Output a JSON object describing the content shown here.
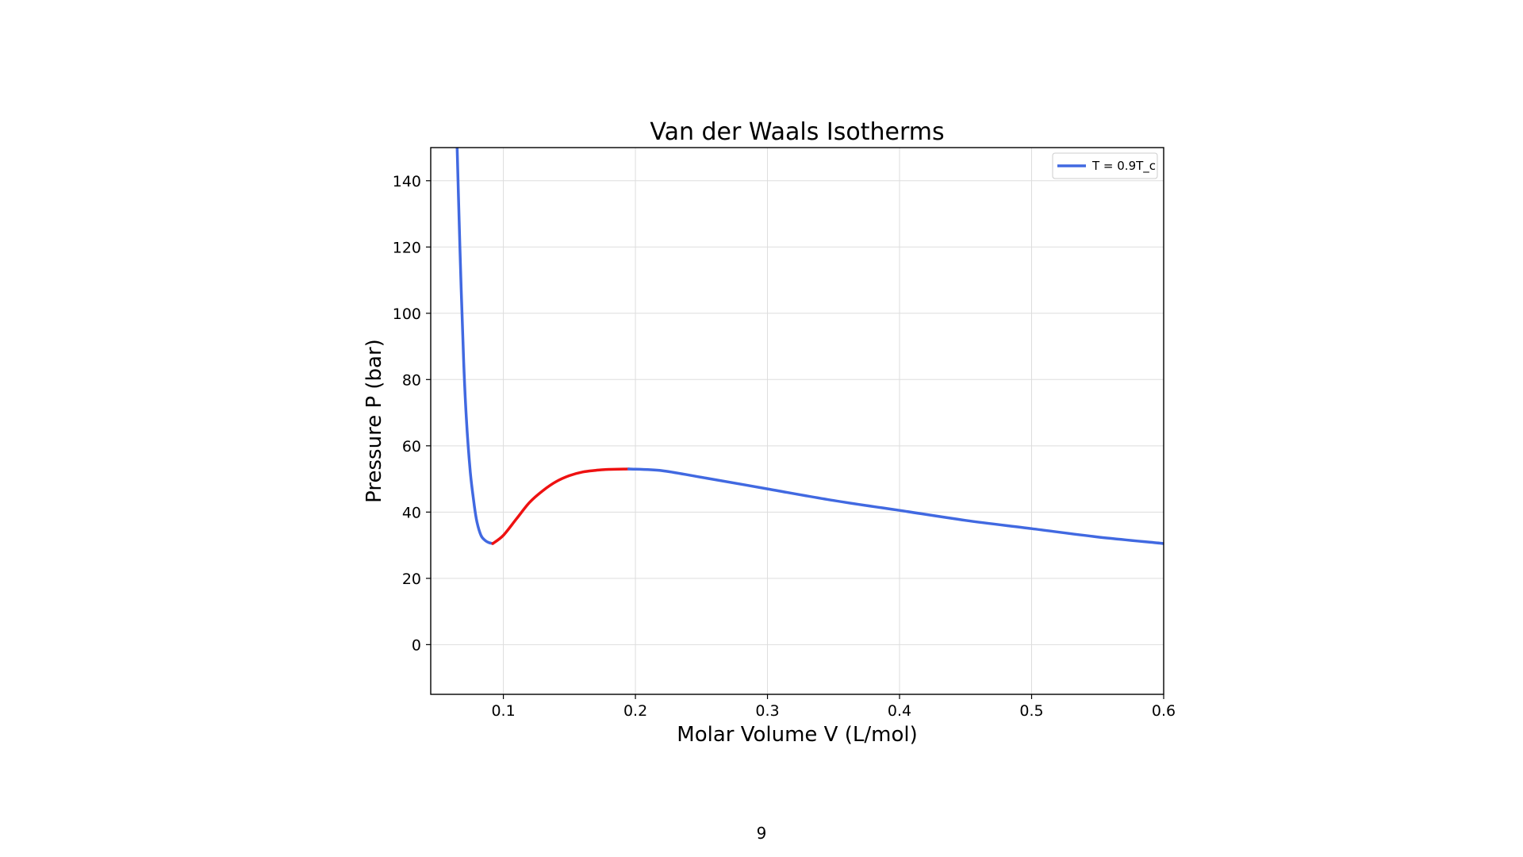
{
  "page": {
    "number": "9"
  },
  "chart_data": {
    "type": "line",
    "title": "Van der Waals Isotherms",
    "xlabel": "Molar Volume V (L/mol)",
    "ylabel": "Pressure P (bar)",
    "xlim": [
      0.045,
      0.6
    ],
    "ylim": [
      -15,
      150
    ],
    "xticks": [
      0.1,
      0.2,
      0.3,
      0.4,
      0.5,
      0.6
    ],
    "xtick_labels": [
      "0.1",
      "0.2",
      "0.3",
      "0.4",
      "0.5",
      "0.6"
    ],
    "yticks": [
      0,
      20,
      40,
      60,
      80,
      100,
      120,
      140
    ],
    "ytick_labels": [
      "0",
      "20",
      "40",
      "60",
      "80",
      "100",
      "120",
      "140"
    ],
    "grid": true,
    "legend_position": "top-right",
    "colors": {
      "stable": "#4169e1",
      "unstable": "#ee1111",
      "grid": "#dddddd",
      "axes": "#000000"
    },
    "series": [
      {
        "name": "T = 0.9T_c",
        "color": "#4169e1",
        "x": [
          0.065,
          0.066,
          0.068,
          0.07,
          0.072,
          0.075,
          0.078,
          0.08,
          0.083,
          0.086,
          0.089,
          0.092
        ],
        "y": [
          150,
          135,
          108,
          85,
          68,
          52,
          42,
          37,
          33,
          31.5,
          30.8,
          30.5
        ]
      },
      {
        "name": "",
        "color": "#ee1111",
        "x": [
          0.092,
          0.1,
          0.11,
          0.12,
          0.13,
          0.14,
          0.15,
          0.16,
          0.17,
          0.18,
          0.195
        ],
        "y": [
          30.5,
          33,
          38,
          43,
          46.5,
          49.2,
          51,
          52.1,
          52.6,
          52.9,
          53
        ]
      },
      {
        "name": "",
        "color": "#4169e1",
        "x": [
          0.195,
          0.22,
          0.25,
          0.3,
          0.35,
          0.4,
          0.45,
          0.5,
          0.55,
          0.6
        ],
        "y": [
          53,
          52.5,
          50.5,
          47,
          43.5,
          40.5,
          37.5,
          35,
          32.5,
          30.5
        ]
      }
    ],
    "legend": {
      "entries": [
        "T = 0.9T_c"
      ]
    }
  }
}
